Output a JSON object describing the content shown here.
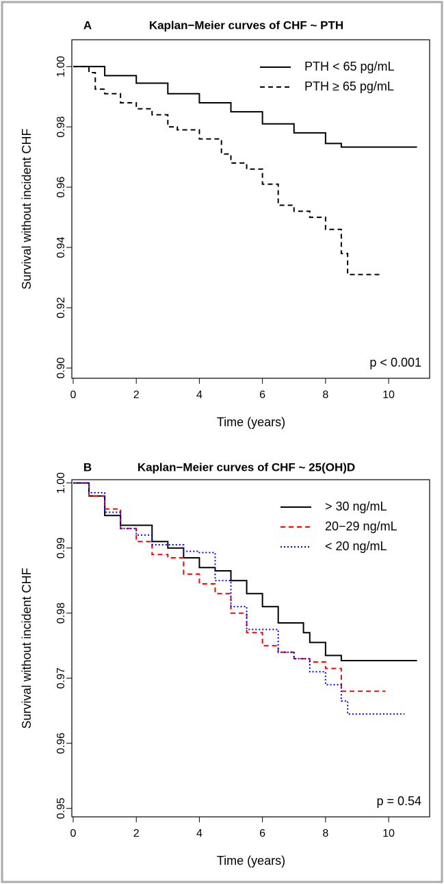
{
  "chart_data": [
    {
      "type": "line",
      "step": true,
      "panel": "A",
      "title": "Kaplan−Meier curves of CHF ~ PTH",
      "xlabel": "Time (years)",
      "ylabel": "Survival without incident CHF",
      "annotation": "p < 0.001",
      "legend": "topright",
      "xlim": [
        0,
        11.3
      ],
      "ylim": [
        0.8966,
        1.0089
      ],
      "xticks": [
        0,
        2,
        4,
        6,
        8,
        10
      ],
      "yticks": [
        {
          "value": 0.9,
          "label": "0.90"
        },
        0.92,
        0.94,
        0.96,
        0.98,
        {
          "value": 1.0,
          "label": "1.00"
        }
      ],
      "series": [
        {
          "name": "PTH < 65 pg/mL",
          "color": "#000000",
          "style": "solid",
          "x": [
            0,
            1,
            2,
            3,
            4,
            5,
            6,
            7,
            8,
            8.5,
            10.9
          ],
          "values": [
            1.0,
            0.997,
            0.9945,
            0.991,
            0.988,
            0.985,
            0.981,
            0.978,
            0.9745,
            0.9733,
            0.9733
          ]
        },
        {
          "name": "PTH ≥ 65 pg/mL",
          "color": "#000000",
          "style": "dashed",
          "x": [
            0,
            0.5,
            0.7,
            1,
            1.5,
            2,
            2.5,
            3,
            3.3,
            4,
            4.7,
            5,
            5.5,
            6,
            6.5,
            7,
            7.5,
            8,
            8.5,
            8.7,
            9.8
          ],
          "values": [
            1.0,
            0.998,
            0.9925,
            0.991,
            0.988,
            0.986,
            0.984,
            0.98,
            0.979,
            0.976,
            0.971,
            0.968,
            0.966,
            0.961,
            0.954,
            0.952,
            0.95,
            0.946,
            0.938,
            0.931,
            0.931
          ]
        }
      ]
    },
    {
      "type": "line",
      "step": true,
      "panel": "B",
      "title": "Kaplan−Meier curves of CHF ~ 25(OH)D",
      "xlabel": "Time (years)",
      "ylabel": "Survival without incident CHF",
      "annotation": "p = 0.54",
      "legend": "topright",
      "xlim": [
        0,
        11.3
      ],
      "ylim": [
        0.9487,
        1.0005
      ],
      "xticks": [
        0,
        2,
        4,
        6,
        8,
        10
      ],
      "yticks": [
        0.95,
        0.96,
        0.97,
        0.98,
        0.99,
        {
          "value": 1.0,
          "label": "1.00"
        }
      ],
      "series": [
        {
          "name": "> 30 ng/mL",
          "color": "#000000",
          "style": "solid",
          "x": [
            0,
            0.5,
            1,
            1.5,
            2,
            2.5,
            3,
            3.5,
            4,
            4.5,
            5,
            5.5,
            6,
            6.5,
            7,
            7.3,
            7.5,
            8,
            8.5,
            10.9
          ],
          "values": [
            1.0,
            0.998,
            0.995,
            0.9935,
            0.9935,
            0.991,
            0.99,
            0.9885,
            0.987,
            0.9865,
            0.985,
            0.983,
            0.981,
            0.9785,
            0.9785,
            0.977,
            0.9755,
            0.9735,
            0.9727,
            0.9727
          ]
        },
        {
          "name": "20−29 ng/mL",
          "color": "#ff0000",
          "style": "dashed",
          "x": [
            0,
            0.5,
            1,
            1.5,
            2,
            2.5,
            3,
            3.5,
            4,
            4.5,
            5,
            5.5,
            6,
            6.5,
            7,
            7.5,
            8,
            8.5,
            9.9
          ],
          "values": [
            1.0,
            0.998,
            0.996,
            0.993,
            0.991,
            0.989,
            0.9885,
            0.986,
            0.9845,
            0.983,
            0.98,
            0.977,
            0.975,
            0.974,
            0.973,
            0.9725,
            0.9715,
            0.968,
            0.968
          ]
        },
        {
          "name": "< 20 ng/mL",
          "color": "#0000ff",
          "style": "dotted",
          "x": [
            0,
            0.5,
            1,
            1.5,
            2,
            2.5,
            3,
            3.5,
            4,
            4.5,
            5,
            5.5,
            6,
            6.5,
            7,
            7.5,
            8,
            8.5,
            8.7,
            10.5
          ],
          "values": [
            1.0,
            0.9985,
            0.9955,
            0.993,
            0.992,
            0.9905,
            0.9905,
            0.9895,
            0.9893,
            0.985,
            0.981,
            0.9775,
            0.9775,
            0.974,
            0.973,
            0.971,
            0.969,
            0.9665,
            0.9645,
            0.9645
          ]
        }
      ]
    }
  ]
}
